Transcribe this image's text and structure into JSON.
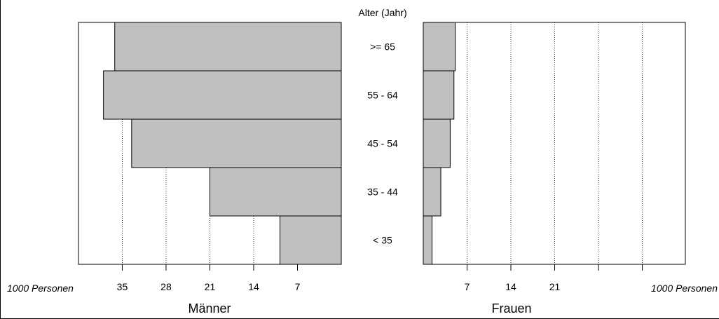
{
  "chart_data": {
    "type": "bar",
    "subtype": "population-pyramid",
    "title": "",
    "center_axis_label": "Alter (Jahr)",
    "unit_label": "1000 Personen",
    "categories": [
      "< 35",
      "35 - 44",
      "45 - 54",
      "55 - 64",
      ">= 65"
    ],
    "bar_color": "#c0c0c0",
    "grid": "dotted vertical",
    "men": {
      "name": "Männer",
      "values": [
        9.8,
        21.0,
        33.5,
        38.0,
        36.2
      ],
      "xlim": [
        0,
        42
      ],
      "ticks": [
        7,
        14,
        21,
        28,
        35
      ],
      "tick_labels": [
        "7",
        "14",
        "21",
        "28",
        "35"
      ]
    },
    "women": {
      "name": "Frauen",
      "values": [
        1.4,
        2.8,
        4.3,
        4.9,
        5.1
      ],
      "xlim": [
        0,
        42
      ],
      "ticks": [
        7,
        14,
        21,
        28,
        35
      ],
      "tick_labels": [
        "7",
        "14",
        "21",
        "",
        ""
      ]
    }
  }
}
